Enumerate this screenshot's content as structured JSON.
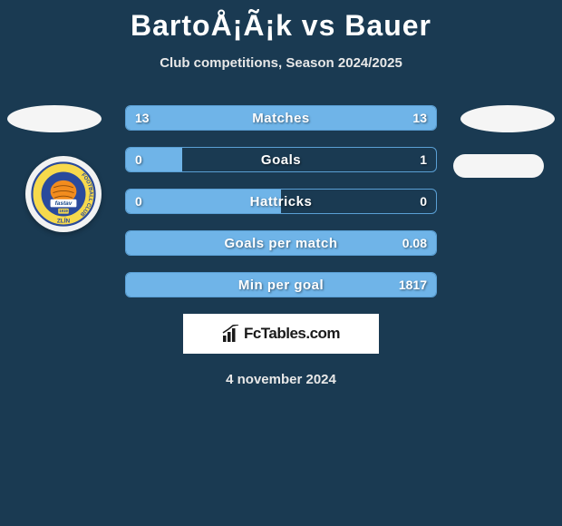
{
  "title": "BartoÅ¡Ã¡k vs Bauer",
  "subtitle": "Club competitions, Season 2024/2025",
  "date": "4 november 2024",
  "brand": "FcTables.com",
  "colors": {
    "background": "#1a3a52",
    "bar_border": "#5a9fd4",
    "bar_fill": "#6fb4e8",
    "badge_bg": "#f5f5f5"
  },
  "club_logo_left": {
    "outer_ring": "#f7d94c",
    "ring_border": "#2a4a9c",
    "inner_bg": "#2a4a9c",
    "ball": "#f28c1e",
    "text_top": "FOOTBALL CLUB",
    "text_bottom": "ZLÍN",
    "center_text": "fastav",
    "year": "1919"
  },
  "stats": [
    {
      "label": "Matches",
      "left_val": "13",
      "right_val": "13",
      "left_pct": 50,
      "right_pct": 50
    },
    {
      "label": "Goals",
      "left_val": "0",
      "right_val": "1",
      "left_pct": 18,
      "right_pct": 0
    },
    {
      "label": "Hattricks",
      "left_val": "0",
      "right_val": "0",
      "left_pct": 50,
      "right_pct": 0
    },
    {
      "label": "Goals per match",
      "left_val": "",
      "right_val": "0.08",
      "left_pct": 100,
      "right_pct": 0
    },
    {
      "label": "Min per goal",
      "left_val": "",
      "right_val": "1817",
      "left_pct": 100,
      "right_pct": 0
    }
  ]
}
